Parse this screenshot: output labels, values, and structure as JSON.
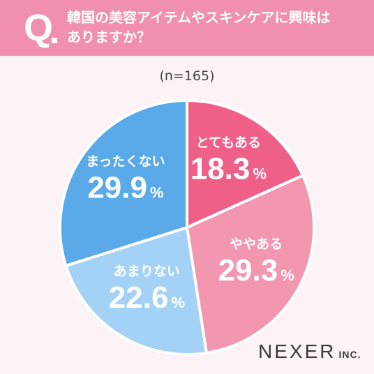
{
  "header": {
    "q_mark": "Q",
    "question": "韓国の美容アイテムやスキンケアに興味は\nありますか？"
  },
  "sample_size": "(n=165)",
  "brand": {
    "name": "NEXER",
    "suffix": "INC."
  },
  "colors": {
    "header_bg": "#f190ae",
    "slice_very": "#ef6089",
    "slice_somewhat": "#f397b1",
    "slice_notmuch": "#a4d2f6",
    "slice_notatall": "#5aa9e8",
    "label": "#ffffff"
  },
  "chart_data": {
    "type": "pie",
    "start_angle_deg": 0,
    "direction": "clockwise",
    "slices": [
      {
        "label": "とてもある",
        "value": 18.3,
        "display": "18.3",
        "unit": "%",
        "color": "#ef6089"
      },
      {
        "label": "ややある",
        "value": 29.3,
        "display": "29.3",
        "unit": "%",
        "color": "#f397b1"
      },
      {
        "label": "あまりない",
        "value": 22.6,
        "display": "22.6",
        "unit": "%",
        "color": "#a4d2f6"
      },
      {
        "label": "まったくない",
        "value": 29.9,
        "display": "29.9",
        "unit": "%",
        "color": "#5aa9e8"
      }
    ]
  }
}
